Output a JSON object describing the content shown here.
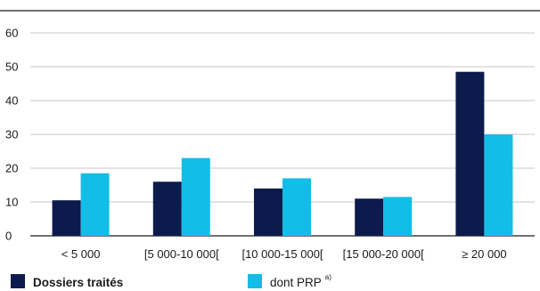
{
  "chart_data": {
    "type": "bar",
    "categories": [
      "< 5 000",
      "[5 000-10 000[",
      "[10 000-15 000[",
      "[15 000-20 000[",
      "≥ 20 000"
    ],
    "series": [
      {
        "name": "Dossiers traités",
        "color": "#0d1b4c",
        "values": [
          10.5,
          16,
          14,
          11,
          48.5
        ]
      },
      {
        "name": "dont PRP",
        "name_sup": "a)",
        "color": "#12bde8",
        "values": [
          18.5,
          23,
          17,
          11.5,
          30
        ]
      }
    ],
    "yticks": [
      0,
      10,
      20,
      30,
      40,
      50,
      60
    ],
    "ylim": [
      0,
      60
    ],
    "grid": true,
    "legend_position": "bottom"
  }
}
